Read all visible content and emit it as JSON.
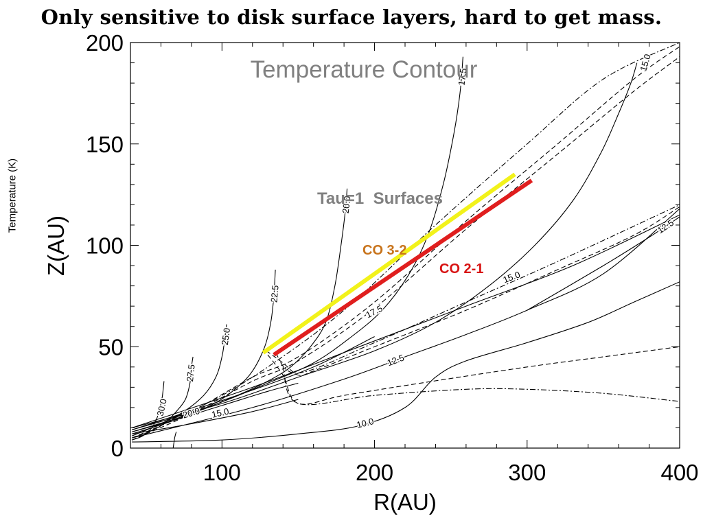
{
  "slide": {
    "headline": "Only sensitive to disk surface layers, hard to get mass.",
    "side_label": "Temperature (K)"
  },
  "chart_data": {
    "type": "line",
    "title": "Temperature Contour",
    "xlabel": "R(AU)",
    "ylabel": "Z(AU)",
    "xlim": [
      40,
      400
    ],
    "ylim": [
      0,
      200
    ],
    "xticks": [
      100,
      200,
      300,
      400
    ],
    "yticks": [
      0,
      50,
      100,
      150,
      200
    ],
    "grid": false,
    "annotations": {
      "tau_label": "Tau=1  Surfaces",
      "co32_label": "CO 3-2",
      "co21_label": "CO 2-1"
    },
    "colors": {
      "co32": "#f2f21a",
      "co21": "#e01e1e",
      "co32_text": "#c8741c",
      "co21_text": "#d81414",
      "title": "#808080",
      "annotation": "#808080"
    },
    "highlight_series": [
      {
        "name": "CO 3-2",
        "points": [
          [
            127,
            47
          ],
          [
            292,
            135
          ]
        ]
      },
      {
        "name": "CO 2-1",
        "points": [
          [
            134,
            46
          ],
          [
            303,
            132
          ]
        ]
      }
    ],
    "contours": [
      {
        "label": "30.0",
        "label_at": [
          61,
          20
        ],
        "points": [
          [
            41,
            4
          ],
          [
            48,
            6
          ],
          [
            54,
            10
          ],
          [
            58,
            16
          ],
          [
            60,
            22
          ],
          [
            61,
            26
          ],
          [
            62,
            33
          ]
        ]
      },
      {
        "label": "27.5",
        "label_at": [
          80,
          37
        ],
        "points": [
          [
            41,
            5
          ],
          [
            52,
            8
          ],
          [
            62,
            12
          ],
          [
            70,
            18
          ],
          [
            76,
            24
          ],
          [
            79,
            32
          ],
          [
            80,
            40
          ],
          [
            81,
            45
          ]
        ]
      },
      {
        "label": "25.0",
        "label_at": [
          103,
          55
        ],
        "points": [
          [
            41,
            6
          ],
          [
            60,
            12
          ],
          [
            75,
            18
          ],
          [
            88,
            26
          ],
          [
            96,
            35
          ],
          [
            100,
            45
          ],
          [
            102,
            55
          ],
          [
            103,
            61
          ]
        ]
      },
      {
        "label": "22.5",
        "label_at": [
          135,
          76
        ],
        "points": [
          [
            41,
            7
          ],
          [
            70,
            14
          ],
          [
            95,
            22
          ],
          [
            110,
            30
          ],
          [
            120,
            38
          ],
          [
            128,
            50
          ],
          [
            132,
            62
          ],
          [
            134,
            75
          ],
          [
            135,
            88
          ]
        ]
      },
      {
        "label": "20.0",
        "label_at": [
          182,
          120
        ],
        "points": [
          [
            41,
            8
          ],
          [
            80,
            17
          ],
          [
            110,
            26
          ],
          [
            130,
            33
          ],
          [
            145,
            40
          ],
          [
            158,
            50
          ],
          [
            168,
            62
          ],
          [
            174,
            80
          ],
          [
            178,
            100
          ],
          [
            181,
            118
          ],
          [
            182,
            128
          ]
        ]
      },
      {
        "label": "17.5",
        "label_at": [
          258,
          183
        ],
        "points": [
          [
            41,
            9
          ],
          [
            90,
            20
          ],
          [
            130,
            32
          ],
          [
            160,
            42
          ],
          [
            185,
            55
          ],
          [
            205,
            68
          ],
          [
            222,
            85
          ],
          [
            235,
            105
          ],
          [
            245,
            130
          ],
          [
            252,
            155
          ],
          [
            256,
            175
          ],
          [
            258,
            193
          ]
        ]
      },
      {
        "label": "15.0",
        "label_at": [
          378,
          190
        ],
        "points": [
          [
            41,
            10
          ],
          [
            100,
            22
          ],
          [
            150,
            35
          ],
          [
            200,
            48
          ],
          [
            240,
            62
          ],
          [
            275,
            80
          ],
          [
            305,
            100
          ],
          [
            330,
            122
          ],
          [
            348,
            145
          ],
          [
            360,
            165
          ],
          [
            368,
            180
          ],
          [
            372,
            190
          ]
        ]
      },
      {
        "label": "15.0",
        "label_at": [
          290,
          84
        ],
        "points": [
          [
            41,
            10
          ],
          [
            120,
            30
          ],
          [
            190,
            50
          ],
          [
            260,
            70
          ],
          [
            330,
            90
          ],
          [
            400,
            115
          ]
        ]
      },
      {
        "label": "20.0",
        "label_at": [
          80,
          17
        ],
        "points": [
          [
            41,
            8
          ],
          [
            70,
            14
          ],
          [
            100,
            21
          ],
          [
            130,
            28
          ],
          [
            150,
            32
          ]
        ]
      },
      {
        "label": "15.0",
        "label_at": [
          99,
          17
        ],
        "points": [
          [
            41,
            7
          ],
          [
            80,
            12
          ],
          [
            120,
            18
          ],
          [
            150,
            24
          ]
        ]
      },
      {
        "label": "17.5",
        "label_at": [
          200,
          67
        ],
        "points": [
          [
            41,
            9
          ],
          [
            110,
            26
          ],
          [
            160,
            40
          ],
          [
            200,
            55
          ]
        ]
      },
      {
        "label": "12.5",
        "label_at": [
          214,
          43
        ],
        "points": [
          [
            41,
            5
          ],
          [
            120,
            20
          ],
          [
            180,
            34
          ],
          [
            220,
            45
          ],
          [
            260,
            56
          ],
          [
            300,
            68
          ],
          [
            350,
            86
          ],
          [
            400,
            118
          ]
        ]
      },
      {
        "label": "12.5",
        "label_at": [
          391,
          109
        ],
        "points": [
          [
            300,
            68
          ],
          [
            350,
            90
          ],
          [
            380,
            104
          ],
          [
            400,
            114
          ]
        ]
      },
      {
        "label": "10.0",
        "label_at": [
          194,
          12
        ],
        "points": [
          [
            41,
            3
          ],
          [
            100,
            4
          ],
          [
            150,
            7
          ],
          [
            190,
            11
          ],
          [
            220,
            20
          ],
          [
            240,
            35
          ],
          [
            260,
            43
          ],
          [
            300,
            52
          ],
          [
            340,
            62
          ],
          [
            370,
            72
          ],
          [
            400,
            82
          ]
        ]
      },
      {
        "label": "",
        "label_at": [
          0,
          0
        ],
        "points": [
          [
            68,
            0
          ],
          [
            69,
            5
          ],
          [
            70,
            8
          ]
        ]
      }
    ],
    "dashed": [
      {
        "points": [
          [
            41,
            5
          ],
          [
            80,
            18
          ],
          [
            120,
            35
          ],
          [
            150,
            45
          ],
          [
            200,
            72
          ],
          [
            260,
            112
          ],
          [
            320,
            150
          ],
          [
            370,
            182
          ],
          [
            400,
            198
          ]
        ]
      },
      {
        "points": [
          [
            41,
            4
          ],
          [
            80,
            17
          ],
          [
            120,
            33
          ],
          [
            150,
            43
          ],
          [
            200,
            69
          ],
          [
            260,
            108
          ],
          [
            320,
            145
          ],
          [
            370,
            176
          ],
          [
            400,
            193
          ]
        ]
      },
      {
        "points": [
          [
            129,
            48
          ],
          [
            140,
            42
          ],
          [
            150,
            36
          ],
          [
            160,
            38
          ],
          [
            200,
            50
          ],
          [
            260,
            68
          ],
          [
            320,
            88
          ],
          [
            370,
            105
          ],
          [
            400,
            119
          ]
        ]
      },
      {
        "points": [
          [
            130,
            46
          ],
          [
            140,
            36
          ],
          [
            150,
            22
          ],
          [
            180,
            26
          ],
          [
            230,
            32
          ],
          [
            300,
            40
          ],
          [
            350,
            45
          ],
          [
            400,
            50
          ]
        ]
      }
    ],
    "dashdot": [
      {
        "points": [
          [
            41,
            6
          ],
          [
            90,
            22
          ],
          [
            130,
            40
          ],
          [
            180,
            68
          ],
          [
            240,
            110
          ],
          [
            300,
            150
          ],
          [
            350,
            182
          ],
          [
            400,
            200
          ]
        ]
      },
      {
        "points": [
          [
            135,
            47
          ],
          [
            150,
            37
          ],
          [
            200,
            52
          ],
          [
            260,
            72
          ],
          [
            320,
            92
          ],
          [
            400,
            120
          ]
        ]
      },
      {
        "points": [
          [
            140,
            40
          ],
          [
            150,
            22
          ],
          [
            200,
            26
          ],
          [
            260,
            29
          ],
          [
            300,
            29
          ],
          [
            350,
            27
          ],
          [
            400,
            23
          ]
        ]
      }
    ]
  }
}
